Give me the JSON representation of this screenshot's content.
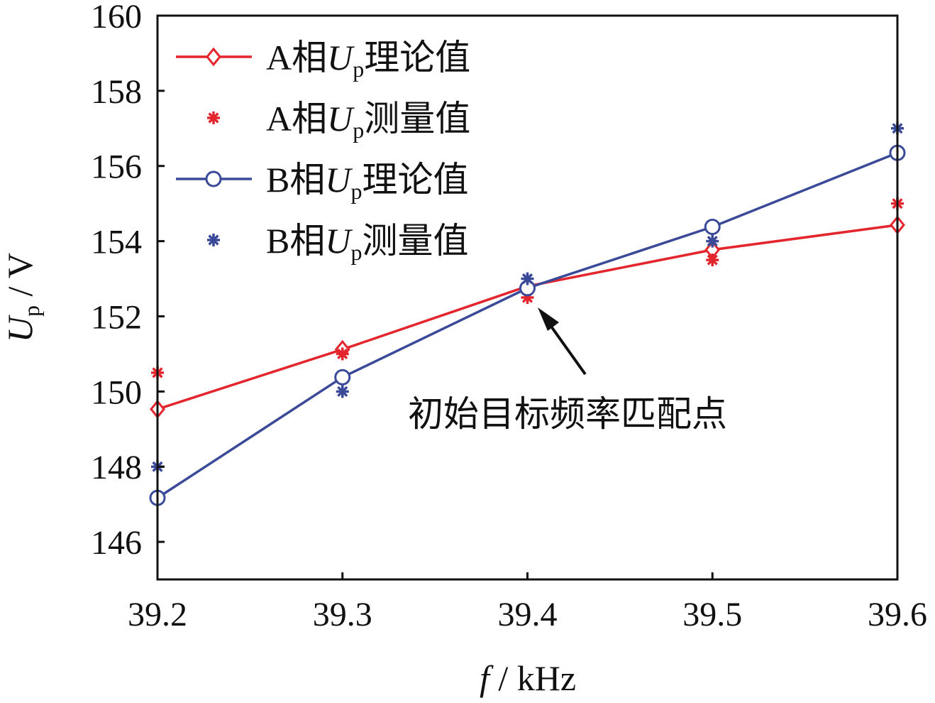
{
  "chart_data": {
    "type": "line",
    "xlabel": {
      "symbol": "f",
      "unit": " / kHz"
    },
    "ylabel": {
      "symbol": "U",
      "sub": "p",
      "unit": " / V"
    },
    "x": [
      39.2,
      39.3,
      39.4,
      39.5,
      39.6
    ],
    "xlim": [
      39.2,
      39.6
    ],
    "ylim": [
      145,
      160
    ],
    "xticks": [
      "39.2",
      "39.3",
      "39.4",
      "39.5",
      "39.6"
    ],
    "yticks": [
      "146",
      "148",
      "150",
      "152",
      "154",
      "156",
      "158",
      "160"
    ],
    "grid": false,
    "legend_position": "top-left",
    "series": [
      {
        "name": "A相Up理论值",
        "phase": "A相",
        "symbol": "U",
        "sub": "p",
        "suffix": "理论值",
        "color": "#e3262d",
        "marker": "diamond",
        "line": true,
        "values": [
          149.53,
          151.12,
          152.8,
          153.77,
          154.43
        ]
      },
      {
        "name": "A相Up测量值",
        "phase": "A相",
        "symbol": "U",
        "sub": "p",
        "suffix": "测量值",
        "color": "#e3262d",
        "marker": "asterisk",
        "line": false,
        "values": [
          150.5,
          151.0,
          152.5,
          153.5,
          155.0
        ]
      },
      {
        "name": "B相Up理论值",
        "phase": "B相",
        "symbol": "U",
        "sub": "p",
        "suffix": "理论值",
        "color": "#3b4a98",
        "marker": "circle",
        "line": true,
        "values": [
          147.17,
          150.38,
          152.75,
          154.38,
          156.35
        ]
      },
      {
        "name": "B相Up测量值",
        "phase": "B相",
        "symbol": "U",
        "sub": "p",
        "suffix": "测量值",
        "color": "#3b4a98",
        "marker": "asterisk",
        "line": false,
        "values": [
          148.0,
          150.0,
          153.0,
          154.0,
          157.0
        ]
      }
    ],
    "annotation": {
      "text": "初始目标频率匹配点",
      "x": 39.4,
      "y": 152.8
    }
  }
}
